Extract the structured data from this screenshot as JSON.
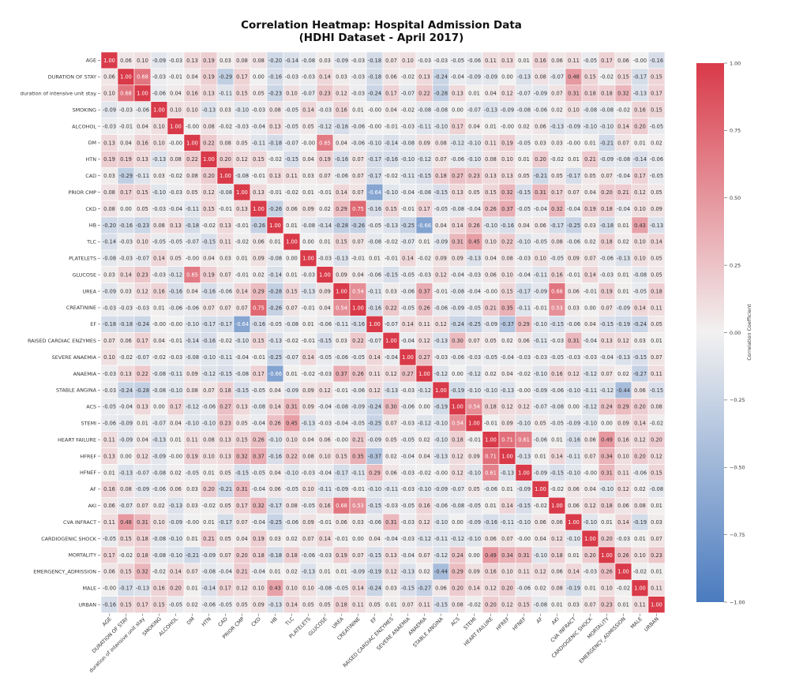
{
  "chart_data": {
    "type": "heatmap",
    "title_line1": "Correlation Heatmap: Hospital Admission Data",
    "title_line2": "(HDHI Dataset - April 2017)",
    "labels": [
      "AGE",
      "DURATION OF STAY",
      "duration of intensive unit stay",
      "SMOKING",
      "ALCOHOL",
      "DM",
      "HTN",
      "CAD",
      "PRIOR CMP",
      "CKD",
      "HB",
      "TLC",
      "PLATELETS",
      "GLUCOSE",
      "UREA",
      "CREATININE",
      "EF",
      "RAISED CARDIAC ENZYMES",
      "SEVERE ANAEMIA",
      "ANAEMIA",
      "STABLE ANGINA",
      "ACS",
      "STEMI",
      "HEART FAILURE",
      "HFREF",
      "HFNEF",
      "AF",
      "AKI",
      "CVA INFRACT",
      "CARDIOGENIC SHOCK",
      "MORTALITY",
      "EMERGENCY_ADMISSION",
      "MALE",
      "URBAN"
    ],
    "values": [
      [
        1.0,
        0.06,
        0.1,
        -0.09,
        -0.03,
        0.13,
        0.19,
        0.03,
        0.08,
        0.08,
        -0.2,
        -0.14,
        -0.08,
        0.03,
        -0.09,
        -0.03,
        -0.18,
        0.07,
        0.1,
        -0.03,
        -0.03,
        -0.05,
        -0.06,
        0.11,
        0.13,
        0.01,
        0.16,
        0.06,
        0.11,
        -0.05,
        0.17,
        0.06,
        -0.0,
        -0.16
      ],
      [
        0.06,
        1.0,
        0.68,
        -0.03,
        -0.01,
        0.04,
        0.19,
        -0.29,
        0.17,
        0.0,
        -0.16,
        -0.03,
        -0.03,
        0.14,
        0.03,
        -0.03,
        -0.18,
        0.06,
        -0.02,
        0.13,
        -0.24,
        -0.04,
        -0.09,
        -0.09,
        0.0,
        -0.13,
        0.08,
        -0.07,
        0.48,
        0.15,
        -0.02,
        0.15,
        -0.17,
        0.15
      ],
      [
        0.1,
        0.68,
        1.0,
        -0.06,
        0.04,
        0.16,
        0.13,
        -0.11,
        0.15,
        0.05,
        -0.23,
        0.1,
        -0.07,
        0.23,
        0.12,
        -0.03,
        -0.24,
        0.17,
        -0.07,
        0.22,
        -0.28,
        0.13,
        0.01,
        0.04,
        0.12,
        -0.07,
        -0.09,
        0.07,
        0.31,
        0.18,
        0.18,
        0.32,
        -0.13,
        0.17
      ],
      [
        -0.09,
        -0.03,
        -0.06,
        1.0,
        0.1,
        0.1,
        -0.13,
        0.03,
        -0.1,
        -0.03,
        0.08,
        -0.05,
        0.14,
        -0.03,
        0.16,
        0.01,
        -0.0,
        0.04,
        -0.02,
        -0.08,
        -0.08,
        0.0,
        -0.07,
        -0.13,
        -0.09,
        -0.08,
        -0.06,
        0.02,
        0.1,
        -0.08,
        -0.08,
        -0.02,
        0.16,
        0.15
      ],
      [
        -0.03,
        -0.01,
        0.04,
        0.1,
        1.0,
        -0.0,
        0.08,
        -0.02,
        -0.03,
        -0.04,
        0.13,
        -0.05,
        0.05,
        -0.12,
        -0.16,
        -0.06,
        -0.0,
        -0.01,
        -0.03,
        -0.11,
        -0.1,
        0.17,
        0.04,
        0.01,
        -0.0,
        0.02,
        0.06,
        -0.13,
        -0.09,
        -0.1,
        -0.1,
        0.14,
        0.2,
        -0.05
      ],
      [
        0.13,
        0.04,
        0.16,
        0.1,
        -0.0,
        1.0,
        0.22,
        0.08,
        0.05,
        -0.11,
        -0.18,
        -0.07,
        -0.0,
        0.65,
        0.04,
        -0.06,
        -0.1,
        -0.14,
        -0.08,
        0.09,
        0.08,
        -0.12,
        -0.1,
        0.11,
        0.19,
        -0.05,
        0.03,
        0.03,
        -0.0,
        0.01,
        -0.21,
        0.07,
        0.01,
        0.02
      ],
      [
        0.19,
        0.19,
        0.13,
        -0.13,
        0.08,
        0.22,
        1.0,
        0.2,
        0.12,
        0.15,
        -0.02,
        -0.15,
        0.04,
        0.19,
        -0.16,
        0.07,
        -0.17,
        -0.16,
        -0.1,
        -0.12,
        0.07,
        -0.06,
        -0.1,
        0.08,
        0.1,
        0.01,
        0.2,
        -0.02,
        0.01,
        0.21,
        -0.09,
        -0.08,
        -0.14,
        -0.06
      ],
      [
        0.03,
        -0.29,
        -0.11,
        0.03,
        -0.02,
        0.08,
        0.2,
        1.0,
        -0.08,
        -0.01,
        0.13,
        0.11,
        0.03,
        0.07,
        -0.06,
        0.07,
        -0.17,
        -0.02,
        -0.11,
        -0.15,
        0.18,
        0.27,
        0.23,
        0.13,
        0.13,
        0.05,
        -0.21,
        0.05,
        -0.17,
        0.05,
        0.07,
        -0.04,
        0.17,
        -0.05
      ],
      [
        0.08,
        0.17,
        0.15,
        -0.1,
        -0.03,
        0.05,
        0.12,
        -0.08,
        1.0,
        0.13,
        -0.01,
        -0.02,
        0.01,
        -0.01,
        0.14,
        0.07,
        -0.64,
        -0.1,
        -0.04,
        -0.08,
        -0.15,
        0.13,
        0.05,
        0.15,
        0.32,
        -0.15,
        0.31,
        0.17,
        0.07,
        0.04,
        0.2,
        0.21,
        0.12,
        0.05
      ],
      [
        0.08,
        0.0,
        0.05,
        -0.03,
        -0.04,
        -0.11,
        0.15,
        -0.01,
        0.13,
        1.0,
        -0.26,
        0.06,
        0.09,
        0.02,
        0.29,
        0.75,
        -0.16,
        0.15,
        -0.01,
        0.17,
        -0.05,
        -0.08,
        -0.04,
        0.26,
        0.37,
        -0.05,
        -0.04,
        0.32,
        -0.04,
        0.19,
        0.18,
        -0.04,
        0.1,
        0.09
      ],
      [
        -0.2,
        -0.16,
        -0.23,
        0.08,
        0.13,
        -0.18,
        -0.02,
        0.13,
        -0.01,
        -0.26,
        1.0,
        0.01,
        -0.08,
        -0.14,
        -0.28,
        -0.26,
        -0.05,
        -0.13,
        -0.25,
        -0.66,
        0.04,
        0.14,
        0.26,
        -0.1,
        -0.16,
        0.04,
        0.06,
        -0.17,
        -0.25,
        0.03,
        -0.18,
        0.01,
        0.43,
        -0.13
      ],
      [
        -0.14,
        -0.03,
        0.1,
        -0.05,
        -0.05,
        -0.07,
        -0.15,
        0.11,
        -0.02,
        0.06,
        0.01,
        1.0,
        0.0,
        0.01,
        0.15,
        0.07,
        -0.08,
        -0.02,
        -0.07,
        0.01,
        -0.09,
        0.31,
        0.45,
        0.1,
        0.22,
        -0.1,
        -0.05,
        0.08,
        -0.06,
        0.02,
        0.18,
        0.02,
        0.1,
        0.14
      ],
      [
        -0.08,
        -0.03,
        -0.07,
        0.14,
        0.05,
        -0.0,
        0.04,
        0.03,
        0.01,
        0.09,
        -0.08,
        0.0,
        1.0,
        -0.03,
        -0.13,
        -0.01,
        0.01,
        -0.01,
        0.14,
        -0.02,
        0.09,
        0.09,
        -0.13,
        0.04,
        0.08,
        -0.03,
        0.1,
        -0.05,
        0.09,
        0.07,
        -0.06,
        -0.13,
        0.1,
        0.05
      ],
      [
        0.03,
        0.14,
        0.23,
        -0.03,
        -0.12,
        0.65,
        0.19,
        0.07,
        -0.01,
        0.02,
        -0.14,
        0.01,
        -0.03,
        1.0,
        0.09,
        0.04,
        -0.06,
        -0.15,
        -0.05,
        -0.03,
        0.12,
        -0.04,
        -0.03,
        0.06,
        0.1,
        -0.04,
        -0.11,
        0.16,
        -0.01,
        0.14,
        -0.03,
        0.01,
        -0.08,
        0.05
      ],
      [
        -0.09,
        0.03,
        0.12,
        0.16,
        -0.16,
        0.04,
        -0.16,
        -0.06,
        0.14,
        0.29,
        -0.28,
        0.15,
        -0.13,
        0.09,
        1.0,
        0.54,
        -0.11,
        0.03,
        -0.06,
        0.37,
        -0.01,
        -0.08,
        -0.04,
        -0.0,
        0.15,
        -0.17,
        -0.09,
        0.68,
        0.06,
        -0.01,
        0.19,
        0.01,
        -0.05,
        0.18
      ],
      [
        -0.03,
        -0.03,
        -0.03,
        0.01,
        -0.06,
        -0.06,
        0.07,
        0.07,
        0.07,
        0.75,
        -0.26,
        0.07,
        -0.01,
        0.04,
        0.54,
        1.0,
        -0.16,
        0.22,
        -0.05,
        0.26,
        -0.06,
        -0.09,
        -0.05,
        0.21,
        0.35,
        -0.11,
        -0.01,
        0.53,
        0.03,
        0.0,
        0.07,
        -0.09,
        0.14,
        0.11
      ],
      [
        -0.18,
        -0.18,
        -0.24,
        -0.0,
        -0.0,
        -0.1,
        -0.17,
        -0.17,
        -0.64,
        -0.16,
        -0.05,
        -0.08,
        0.01,
        -0.06,
        -0.11,
        -0.16,
        1.0,
        -0.07,
        0.14,
        0.11,
        0.12,
        -0.24,
        -0.25,
        -0.09,
        -0.37,
        0.29,
        -0.1,
        -0.15,
        -0.06,
        0.04,
        -0.15,
        -0.19,
        -0.24,
        0.05
      ],
      [
        0.07,
        0.06,
        0.17,
        0.04,
        -0.01,
        -0.14,
        -0.16,
        -0.02,
        -0.1,
        0.15,
        -0.13,
        -0.02,
        -0.01,
        -0.15,
        0.03,
        0.22,
        -0.07,
        1.0,
        -0.04,
        0.12,
        -0.13,
        0.3,
        0.07,
        0.05,
        0.02,
        0.06,
        -0.11,
        -0.03,
        0.31,
        -0.04,
        0.13,
        0.12,
        0.03,
        0.01
      ],
      [
        0.1,
        -0.02,
        -0.07,
        -0.02,
        -0.03,
        -0.08,
        -0.1,
        -0.11,
        -0.04,
        -0.01,
        -0.25,
        -0.07,
        0.14,
        -0.05,
        -0.06,
        -0.05,
        0.14,
        -0.04,
        1.0,
        0.27,
        -0.03,
        -0.06,
        -0.03,
        -0.05,
        -0.04,
        -0.03,
        -0.03,
        -0.05,
        -0.03,
        -0.03,
        -0.04,
        -0.13,
        -0.15,
        0.07
      ],
      [
        -0.03,
        0.13,
        0.22,
        -0.08,
        -0.11,
        0.09,
        -0.12,
        -0.15,
        -0.08,
        0.17,
        -0.66,
        0.01,
        -0.02,
        -0.03,
        0.37,
        0.26,
        0.11,
        0.12,
        0.27,
        1.0,
        -0.12,
        0.0,
        -0.12,
        0.02,
        0.04,
        -0.02,
        -0.1,
        0.16,
        0.12,
        -0.12,
        0.07,
        0.02,
        -0.27,
        0.11
      ],
      [
        -0.03,
        -0.24,
        -0.28,
        -0.08,
        -0.1,
        0.08,
        0.07,
        0.18,
        -0.15,
        -0.05,
        0.04,
        -0.09,
        0.09,
        0.12,
        -0.01,
        -0.06,
        0.12,
        -0.13,
        -0.03,
        -0.12,
        1.0,
        -0.19,
        -0.1,
        -0.1,
        -0.13,
        -0.0,
        -0.09,
        -0.06,
        -0.1,
        -0.11,
        -0.12,
        -0.44,
        0.06,
        -0.15
      ],
      [
        -0.05,
        -0.04,
        0.13,
        0.0,
        0.17,
        -0.12,
        -0.06,
        0.27,
        0.13,
        -0.08,
        0.14,
        0.31,
        0.09,
        -0.04,
        -0.08,
        -0.09,
        -0.24,
        0.3,
        -0.06,
        0.0,
        -0.19,
        1.0,
        0.54,
        0.18,
        0.12,
        0.12,
        -0.07,
        -0.08,
        0.0,
        -0.12,
        0.24,
        0.29,
        0.2,
        0.08
      ],
      [
        -0.06,
        -0.09,
        0.01,
        -0.07,
        0.04,
        -0.1,
        -0.1,
        0.23,
        0.05,
        -0.04,
        0.26,
        0.45,
        -0.13,
        -0.03,
        -0.04,
        -0.05,
        -0.25,
        0.07,
        -0.03,
        -0.12,
        -0.1,
        0.54,
        1.0,
        -0.01,
        0.09,
        -0.1,
        0.05,
        -0.05,
        -0.09,
        -0.1,
        0.0,
        0.09,
        0.14,
        -0.02
      ],
      [
        0.11,
        -0.09,
        0.04,
        -0.13,
        0.01,
        0.11,
        0.08,
        0.13,
        0.15,
        0.26,
        -0.1,
        0.1,
        0.04,
        0.06,
        -0.0,
        0.21,
        -0.09,
        0.05,
        -0.05,
        0.02,
        -0.1,
        0.18,
        -0.01,
        1.0,
        0.71,
        0.61,
        -0.06,
        0.01,
        -0.16,
        0.06,
        0.49,
        0.16,
        0.12,
        0.2
      ],
      [
        0.13,
        0.0,
        0.12,
        -0.09,
        -0.0,
        0.19,
        0.1,
        0.13,
        0.32,
        0.37,
        -0.16,
        0.22,
        0.08,
        0.1,
        0.15,
        0.35,
        -0.37,
        0.02,
        -0.04,
        0.04,
        -0.13,
        0.12,
        0.09,
        0.71,
        1.0,
        -0.13,
        0.01,
        0.14,
        -0.11,
        0.07,
        0.34,
        0.1,
        0.2,
        0.12
      ],
      [
        0.01,
        -0.13,
        -0.07,
        -0.08,
        0.02,
        -0.05,
        0.01,
        0.05,
        -0.15,
        -0.05,
        0.04,
        -0.1,
        -0.03,
        -0.04,
        -0.17,
        -0.11,
        0.29,
        0.06,
        -0.03,
        -0.02,
        -0.0,
        0.12,
        -0.1,
        0.61,
        -0.13,
        1.0,
        -0.09,
        -0.15,
        -0.1,
        -0.0,
        0.31,
        0.11,
        -0.06,
        0.15
      ],
      [
        0.16,
        0.08,
        -0.09,
        -0.06,
        0.06,
        0.03,
        0.2,
        -0.21,
        0.31,
        -0.04,
        0.06,
        -0.05,
        0.1,
        -0.11,
        -0.09,
        -0.01,
        -0.1,
        -0.11,
        -0.03,
        -0.1,
        -0.09,
        -0.07,
        0.05,
        -0.06,
        0.01,
        -0.09,
        1.0,
        -0.02,
        0.06,
        0.04,
        -0.1,
        0.12,
        0.02,
        -0.08
      ],
      [
        0.06,
        -0.07,
        0.07,
        0.02,
        -0.13,
        0.03,
        -0.02,
        0.05,
        0.17,
        0.32,
        -0.17,
        0.08,
        -0.05,
        0.16,
        0.68,
        0.53,
        -0.15,
        -0.03,
        -0.05,
        0.16,
        -0.06,
        -0.08,
        -0.05,
        0.01,
        0.14,
        -0.15,
        -0.02,
        1.0,
        0.06,
        0.12,
        0.18,
        0.06,
        0.08,
        0.01
      ],
      [
        0.11,
        0.48,
        0.31,
        0.1,
        -0.09,
        -0.0,
        0.01,
        -0.17,
        0.07,
        -0.04,
        -0.25,
        -0.06,
        0.09,
        -0.01,
        0.06,
        0.03,
        -0.06,
        0.31,
        -0.03,
        0.12,
        -0.1,
        0.0,
        -0.09,
        -0.16,
        -0.11,
        -0.1,
        0.06,
        0.06,
        1.0,
        -0.1,
        0.01,
        0.14,
        -0.19,
        0.03
      ],
      [
        -0.05,
        0.15,
        0.18,
        -0.08,
        -0.1,
        0.01,
        0.21,
        0.05,
        0.04,
        0.19,
        0.03,
        0.02,
        0.07,
        0.14,
        -0.01,
        0.0,
        0.04,
        -0.04,
        -0.03,
        -0.12,
        -0.11,
        -0.12,
        -0.1,
        0.06,
        0.07,
        -0.0,
        0.04,
        0.12,
        -0.1,
        1.0,
        0.2,
        -0.03,
        0.01,
        0.07
      ],
      [
        0.17,
        -0.02,
        0.18,
        -0.08,
        -0.1,
        -0.21,
        -0.09,
        0.07,
        0.2,
        0.18,
        -0.18,
        0.18,
        -0.06,
        -0.03,
        0.19,
        0.07,
        -0.15,
        0.13,
        -0.04,
        0.07,
        -0.12,
        0.24,
        0.0,
        0.49,
        0.34,
        0.31,
        -0.1,
        0.18,
        0.01,
        0.2,
        1.0,
        0.26,
        0.1,
        0.23
      ],
      [
        0.06,
        0.15,
        0.32,
        -0.02,
        0.14,
        0.07,
        -0.08,
        -0.04,
        0.21,
        -0.04,
        0.01,
        0.02,
        -0.13,
        0.01,
        0.01,
        -0.09,
        -0.19,
        0.12,
        -0.13,
        0.02,
        -0.44,
        0.29,
        0.09,
        0.16,
        0.1,
        0.11,
        0.12,
        0.06,
        0.14,
        -0.03,
        0.26,
        1.0,
        -0.02,
        0.01
      ],
      [
        -0.0,
        -0.17,
        -0.13,
        0.16,
        0.2,
        0.01,
        -0.14,
        0.17,
        0.12,
        0.1,
        0.43,
        0.1,
        0.1,
        -0.08,
        -0.05,
        0.14,
        -0.24,
        0.03,
        -0.15,
        -0.27,
        0.06,
        0.2,
        0.14,
        0.12,
        0.2,
        -0.06,
        0.02,
        0.08,
        -0.19,
        0.01,
        0.1,
        -0.02,
        1.0,
        0.11
      ],
      [
        -0.16,
        0.15,
        0.17,
        0.15,
        -0.05,
        0.02,
        -0.06,
        -0.05,
        0.05,
        0.09,
        -0.13,
        0.14,
        0.05,
        0.05,
        0.18,
        0.11,
        0.05,
        0.01,
        0.07,
        0.11,
        -0.15,
        0.08,
        -0.02,
        0.2,
        0.12,
        0.15,
        -0.08,
        0.01,
        0.03,
        0.07,
        0.23,
        0.01,
        0.11,
        1.0
      ]
    ],
    "value_range": [
      -1.0,
      1.0
    ],
    "annotated": true,
    "colorbar": {
      "label": "Correlation Coefficient",
      "ticks": [
        "1.00",
        "0.75",
        "0.50",
        "0.25",
        "0.00",
        "−0.25",
        "−0.50",
        "−0.75",
        "−1.00"
      ],
      "position": "right"
    },
    "colors": {
      "positive": "#d93a49",
      "neutral": "#f2f1f1",
      "negative": "#4a7bbf"
    }
  }
}
